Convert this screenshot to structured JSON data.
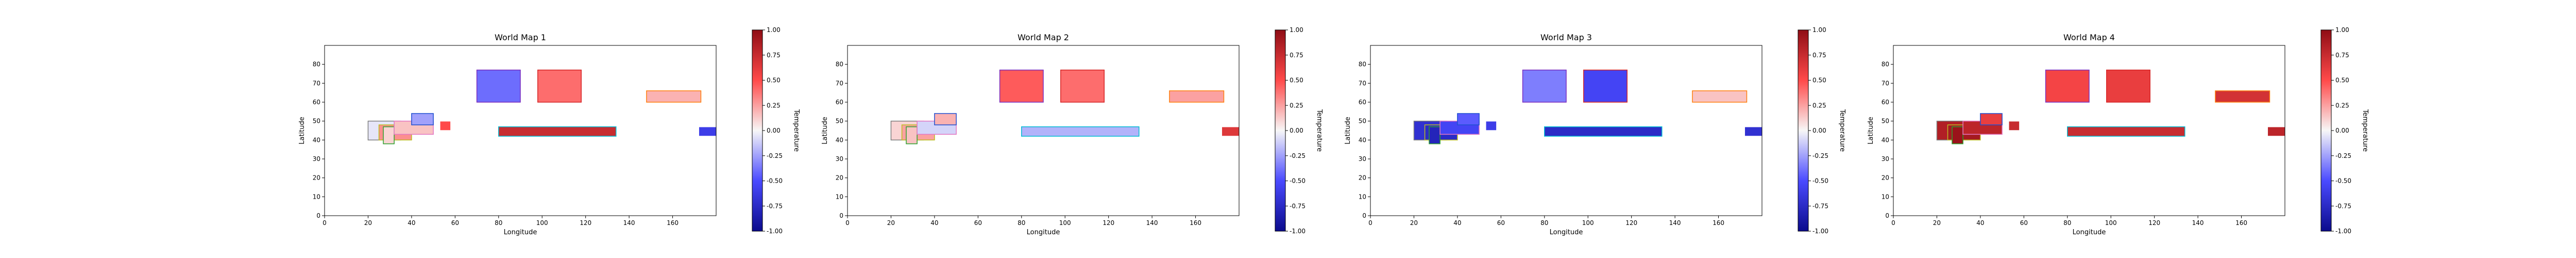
{
  "colors": {
    "cmap_low": "#0b0b8c",
    "cmap_mid": "#f7f7f7",
    "cmap_high": "#8f0d15",
    "axis": "#000000"
  },
  "colorbar": {
    "label": "Temperature",
    "range": [
      -1.0,
      1.0
    ],
    "ticks": [
      "-1.00",
      "-0.75",
      "-0.50",
      "-0.25",
      "0.00",
      "0.25",
      "0.50",
      "0.75",
      "1.00"
    ]
  },
  "chart_data": [
    {
      "type": "heatmap",
      "title": "World Map 1",
      "xlabel": "Longitude",
      "ylabel": "Latitude",
      "xlim": [
        0,
        180
      ],
      "ylim": [
        0,
        90
      ],
      "xticks": [
        0,
        20,
        40,
        60,
        80,
        100,
        120,
        140,
        160
      ],
      "yticks": [
        0,
        10,
        20,
        30,
        40,
        50,
        60,
        70,
        80
      ],
      "grid": false,
      "colorbar_label": "Temperature",
      "regions": [
        {
          "lon": [
            20,
            35
          ],
          "lat": [
            40,
            50
          ],
          "value": -0.05,
          "border": "#7f7f7f"
        },
        {
          "lon": [
            25,
            40
          ],
          "lat": [
            40,
            48
          ],
          "value": 0.3,
          "border": "#bcbd22"
        },
        {
          "lon": [
            27,
            32
          ],
          "lat": [
            38,
            47
          ],
          "value": 0.1,
          "border": "#2ca02c"
        },
        {
          "lon": [
            32,
            50
          ],
          "lat": [
            43,
            50
          ],
          "value": 0.15,
          "border": "#e377c2"
        },
        {
          "lon": [
            40,
            50
          ],
          "lat": [
            48,
            54
          ],
          "value": -0.25,
          "border": "#1f4fd0"
        },
        {
          "lon": [
            53,
            58
          ],
          "lat": [
            45,
            50
          ],
          "value": 0.5,
          "border": "#ffffff"
        },
        {
          "lon": [
            70,
            90
          ],
          "lat": [
            60,
            77
          ],
          "value": -0.4,
          "border": "#7b2fbf"
        },
        {
          "lon": [
            98,
            118
          ],
          "lat": [
            60,
            77
          ],
          "value": 0.4,
          "border": "#d62728"
        },
        {
          "lon": [
            80,
            134
          ],
          "lat": [
            42,
            47
          ],
          "value": 0.75,
          "border": "#00bcd4"
        },
        {
          "lon": [
            148,
            173
          ],
          "lat": [
            60,
            66
          ],
          "value": 0.2,
          "border": "#ff7f0e"
        },
        {
          "lon": [
            172,
            182
          ],
          "lat": [
            42,
            47
          ],
          "value": -0.6,
          "border": "#ffffff"
        }
      ]
    },
    {
      "type": "heatmap",
      "title": "World Map 2",
      "xlabel": "Longitude",
      "ylabel": "Latitude",
      "xlim": [
        0,
        180
      ],
      "ylim": [
        0,
        90
      ],
      "xticks": [
        0,
        20,
        40,
        60,
        80,
        100,
        120,
        140,
        160
      ],
      "yticks": [
        0,
        10,
        20,
        30,
        40,
        50,
        60,
        70,
        80
      ],
      "grid": false,
      "colorbar_label": "Temperature",
      "regions": [
        {
          "lon": [
            20,
            35
          ],
          "lat": [
            40,
            50
          ],
          "value": 0.1,
          "border": "#7f7f7f"
        },
        {
          "lon": [
            25,
            40
          ],
          "lat": [
            40,
            48
          ],
          "value": 0.25,
          "border": "#bcbd22"
        },
        {
          "lon": [
            27,
            32
          ],
          "lat": [
            38,
            47
          ],
          "value": 0.15,
          "border": "#2ca02c"
        },
        {
          "lon": [
            32,
            50
          ],
          "lat": [
            43,
            50
          ],
          "value": -0.1,
          "border": "#e377c2"
        },
        {
          "lon": [
            40,
            50
          ],
          "lat": [
            48,
            54
          ],
          "value": 0.2,
          "border": "#1f4fd0"
        },
        {
          "lon": [
            70,
            90
          ],
          "lat": [
            60,
            77
          ],
          "value": 0.45,
          "border": "#7b2fbf"
        },
        {
          "lon": [
            98,
            118
          ],
          "lat": [
            60,
            77
          ],
          "value": 0.4,
          "border": "#d62728"
        },
        {
          "lon": [
            80,
            134
          ],
          "lat": [
            42,
            47
          ],
          "value": -0.2,
          "border": "#00bcd4"
        },
        {
          "lon": [
            148,
            173
          ],
          "lat": [
            60,
            66
          ],
          "value": 0.25,
          "border": "#ff7f0e"
        },
        {
          "lon": [
            172,
            182
          ],
          "lat": [
            42,
            47
          ],
          "value": 0.65,
          "border": "#ffffff"
        }
      ]
    },
    {
      "type": "heatmap",
      "title": "World Map 3",
      "xlabel": "Longitude",
      "ylabel": "Latitude",
      "xlim": [
        0,
        180
      ],
      "ylim": [
        0,
        90
      ],
      "xticks": [
        0,
        20,
        40,
        60,
        80,
        100,
        120,
        140,
        160
      ],
      "yticks": [
        0,
        10,
        20,
        30,
        40,
        50,
        60,
        70,
        80
      ],
      "grid": false,
      "colorbar_label": "Temperature",
      "regions": [
        {
          "lon": [
            20,
            35
          ],
          "lat": [
            40,
            50
          ],
          "value": -0.7,
          "border": "#7f7f7f"
        },
        {
          "lon": [
            25,
            40
          ],
          "lat": [
            40,
            48
          ],
          "value": -0.75,
          "border": "#bcbd22"
        },
        {
          "lon": [
            27,
            32
          ],
          "lat": [
            38,
            47
          ],
          "value": -0.8,
          "border": "#2ca02c"
        },
        {
          "lon": [
            32,
            50
          ],
          "lat": [
            43,
            50
          ],
          "value": -0.55,
          "border": "#e377c2"
        },
        {
          "lon": [
            40,
            50
          ],
          "lat": [
            48,
            54
          ],
          "value": -0.45,
          "border": "#1f4fd0"
        },
        {
          "lon": [
            53,
            58
          ],
          "lat": [
            45,
            50
          ],
          "value": -0.6,
          "border": "#ffffff"
        },
        {
          "lon": [
            70,
            90
          ],
          "lat": [
            60,
            77
          ],
          "value": -0.35,
          "border": "#7b2fbf"
        },
        {
          "lon": [
            98,
            118
          ],
          "lat": [
            60,
            77
          ],
          "value": -0.55,
          "border": "#d62728"
        },
        {
          "lon": [
            80,
            134
          ],
          "lat": [
            42,
            47
          ],
          "value": -0.75,
          "border": "#00bcd4"
        },
        {
          "lon": [
            148,
            173
          ],
          "lat": [
            60,
            66
          ],
          "value": 0.15,
          "border": "#ff7f0e"
        },
        {
          "lon": [
            172,
            182
          ],
          "lat": [
            42,
            47
          ],
          "value": -0.7,
          "border": "#ffffff"
        }
      ]
    },
    {
      "type": "heatmap",
      "title": "World Map 4",
      "xlabel": "Longitude",
      "ylabel": "Latitude",
      "xlim": [
        0,
        180
      ],
      "ylim": [
        0,
        90
      ],
      "xticks": [
        0,
        20,
        40,
        60,
        80,
        100,
        120,
        140,
        160
      ],
      "yticks": [
        0,
        10,
        20,
        30,
        40,
        50,
        60,
        70,
        80
      ],
      "grid": false,
      "colorbar_label": "Temperature",
      "regions": [
        {
          "lon": [
            20,
            35
          ],
          "lat": [
            40,
            50
          ],
          "value": 0.85,
          "border": "#7f7f7f"
        },
        {
          "lon": [
            25,
            40
          ],
          "lat": [
            40,
            48
          ],
          "value": 0.9,
          "border": "#bcbd22"
        },
        {
          "lon": [
            27,
            32
          ],
          "lat": [
            38,
            47
          ],
          "value": 0.95,
          "border": "#2ca02c"
        },
        {
          "lon": [
            32,
            50
          ],
          "lat": [
            43,
            50
          ],
          "value": 0.8,
          "border": "#e377c2"
        },
        {
          "lon": [
            40,
            50
          ],
          "lat": [
            48,
            54
          ],
          "value": 0.6,
          "border": "#1f4fd0"
        },
        {
          "lon": [
            53,
            58
          ],
          "lat": [
            45,
            50
          ],
          "value": 0.75,
          "border": "#ffffff"
        },
        {
          "lon": [
            70,
            90
          ],
          "lat": [
            60,
            77
          ],
          "value": 0.55,
          "border": "#7b2fbf"
        },
        {
          "lon": [
            98,
            118
          ],
          "lat": [
            60,
            77
          ],
          "value": 0.6,
          "border": "#d62728"
        },
        {
          "lon": [
            80,
            134
          ],
          "lat": [
            42,
            47
          ],
          "value": 0.75,
          "border": "#00bcd4"
        },
        {
          "lon": [
            148,
            173
          ],
          "lat": [
            60,
            66
          ],
          "value": 0.7,
          "border": "#ff7f0e"
        },
        {
          "lon": [
            172,
            182
          ],
          "lat": [
            42,
            47
          ],
          "value": 0.8,
          "border": "#ffffff"
        }
      ]
    }
  ]
}
